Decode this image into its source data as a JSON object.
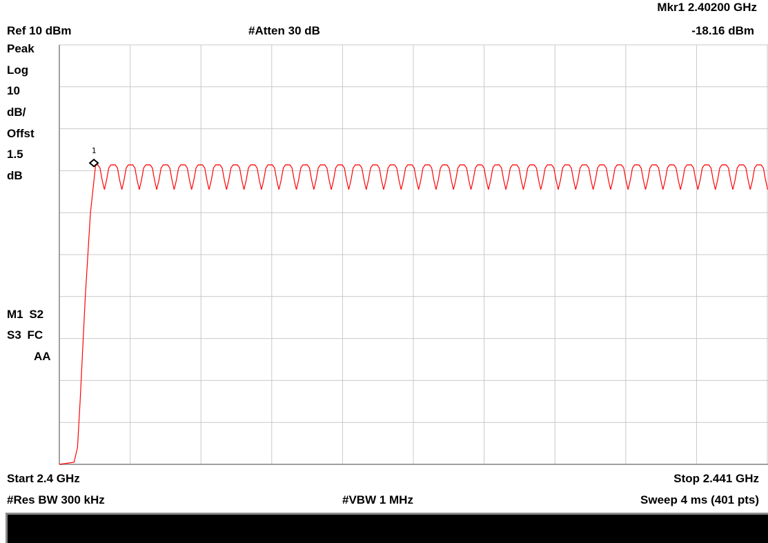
{
  "header": {
    "marker_line1": "Mkr1  2.40200 GHz",
    "marker_line2": "-18.16 dBm",
    "ref_level": "Ref 10 dBm",
    "attenuation": "#Atten 30 dB"
  },
  "left_panel": {
    "detector": "Peak",
    "scale_type": "Log",
    "scale_value": "10",
    "scale_unit": "dB/",
    "offset_label": "Offst",
    "offset_value": "1.5",
    "offset_unit": "dB",
    "flags_line1": "M1  S2",
    "flags_line2": "S3  FC",
    "flags_line3": "AA"
  },
  "footer": {
    "start": "Start 2.4 GHz",
    "stop": "Stop 2.441 GHz",
    "res_bw": "#Res BW 300 kHz",
    "vbw": "#VBW 1 MHz",
    "sweep": "Sweep 4 ms (401 pts)"
  },
  "colors": {
    "trace": "#ff0000",
    "grid": "#c8c8c8",
    "marker": "#000000",
    "status_bar": "#000000"
  },
  "chart_data": {
    "type": "line",
    "title": "",
    "xlabel": "",
    "ylabel": "",
    "x_unit": "GHz",
    "y_unit": "dBm",
    "xlim": [
      2.4,
      2.441
    ],
    "ylim": [
      -90,
      10
    ],
    "grid": true,
    "points": 401,
    "marker": {
      "label": "1",
      "x": 2.402,
      "y": -18.16
    },
    "series": [
      {
        "color": "#ff0000",
        "x": [
          2.4,
          2.40085,
          2.40105,
          2.4012,
          2.4015,
          2.4018,
          2.4021,
          2.403,
          2.441
        ],
        "y": [
          -90,
          -89.5,
          -86,
          -75,
          -50,
          -30,
          -18.6,
          -18.6,
          -18.6
        ],
        "channel_plateau_dbm": -18.6,
        "channel_dip_dbm": -24.5,
        "channel_start_ghz": 2.4021,
        "channel_spacing_ghz": 0.00101
      }
    ]
  }
}
